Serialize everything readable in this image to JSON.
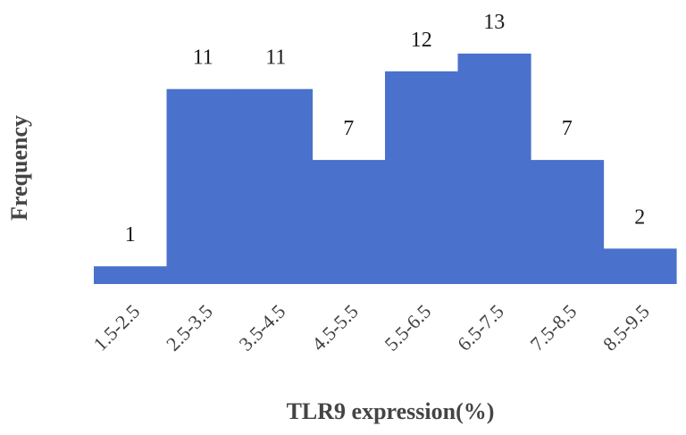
{
  "chart_data": {
    "type": "bar",
    "categories": [
      "1.5-2.5",
      "2.5-3.5",
      "3.5-4.5",
      "4.5-5.5",
      "5.5-6.5",
      "6.5-7.5",
      "7.5-8.5",
      "8.5-9.5"
    ],
    "values": [
      1,
      11,
      11,
      7,
      12,
      13,
      7,
      2
    ],
    "data_labels": [
      "1",
      "11",
      "11",
      "7",
      "12",
      "13",
      "7",
      "2"
    ],
    "xlabel": "TLR9 expression(%)",
    "ylabel": "Frequency",
    "ylim": [
      0,
      13
    ],
    "bar_color": "#4a72cc",
    "grid": false,
    "legend": "none"
  }
}
